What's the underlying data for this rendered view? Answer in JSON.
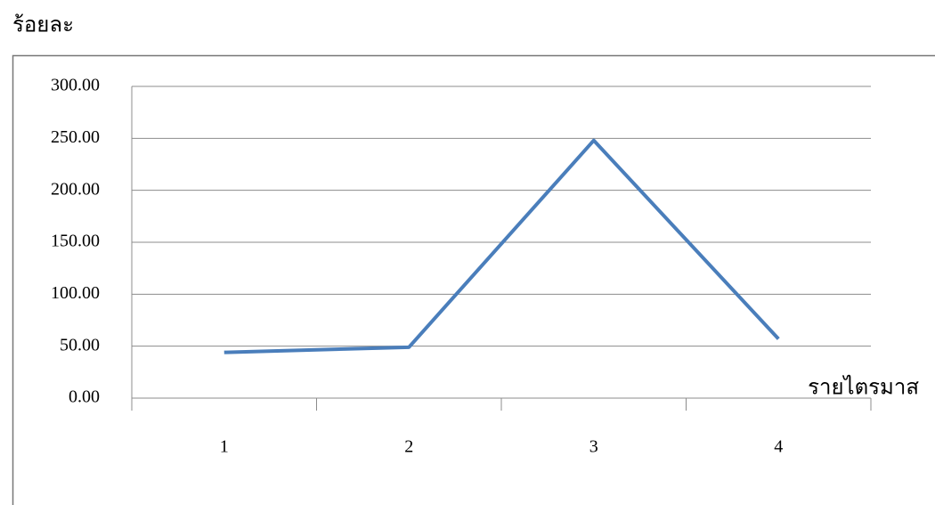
{
  "chart_data": {
    "type": "line",
    "y_label": "ร้อยละ",
    "x_label": "รายไตรมาส",
    "categories": [
      "1",
      "2",
      "3",
      "4"
    ],
    "values": [
      44,
      49,
      248,
      57
    ],
    "color": "#4a7ebb",
    "ylim": [
      0,
      300
    ],
    "yticks": [
      {
        "value": 0,
        "label": "0.00"
      },
      {
        "value": 50,
        "label": "50.00"
      },
      {
        "value": 100,
        "label": "100.00"
      },
      {
        "value": 150,
        "label": "150.00"
      },
      {
        "value": 200,
        "label": "200.00"
      },
      {
        "value": 250,
        "label": "250.00"
      },
      {
        "value": 300,
        "label": "300.00"
      }
    ],
    "grid": true
  }
}
